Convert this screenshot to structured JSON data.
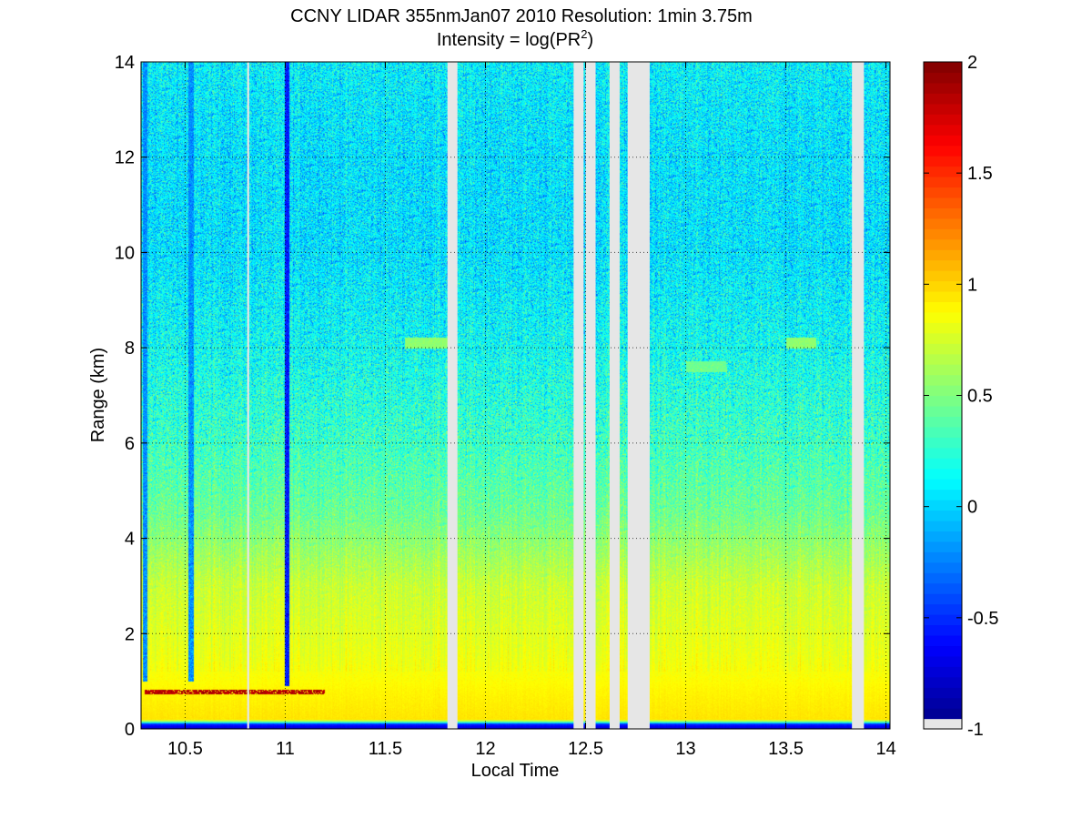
{
  "chart_data": {
    "type": "heatmap",
    "title": "CCNY LIDAR 355nmJan07 2010 Resolution: 1min 3.75m",
    "subtitle_prefix": "Intensity = log(PR",
    "subtitle_sup": "2",
    "subtitle_suffix": ")",
    "xlabel": "Local Time",
    "ylabel": "Range (km)",
    "xlim": [
      10.28,
      14.02
    ],
    "ylim": [
      0,
      14
    ],
    "xticks": [
      10.5,
      11,
      11.5,
      12,
      12.5,
      13,
      13.5,
      14
    ],
    "xtick_labels": [
      "10.5",
      "11",
      "11.5",
      "12",
      "12.5",
      "13",
      "13.5",
      "14"
    ],
    "yticks": [
      0,
      2,
      4,
      6,
      8,
      10,
      12,
      14
    ],
    "ytick_labels": [
      "0",
      "2",
      "4",
      "6",
      "8",
      "10",
      "12",
      "14"
    ],
    "grid": true,
    "colormap": "jet",
    "clim": [
      -1,
      2
    ],
    "colorbar_ticks": [
      -1,
      -0.5,
      0,
      0.5,
      1,
      1.5,
      2
    ],
    "colorbar_labels": [
      "-1",
      "-0.5",
      "0",
      "0.5",
      "1",
      "1.5",
      "2"
    ],
    "missing_color": "#e6e6e6",
    "missing_intervals": [
      [
        10.81,
        10.82
      ],
      [
        11.81,
        11.86
      ],
      [
        12.44,
        12.49
      ],
      [
        12.5,
        12.55
      ],
      [
        12.62,
        12.67
      ],
      [
        12.71,
        12.82
      ],
      [
        13.83,
        13.89
      ]
    ],
    "profile": {
      "heights_km": [
        0,
        0.1,
        0.15,
        0.2,
        0.8,
        1.5,
        3,
        4.5,
        6,
        8,
        10,
        12,
        14
      ],
      "intensity": [
        -0.8,
        -0.5,
        0.5,
        0.95,
        0.9,
        0.82,
        0.72,
        0.45,
        0.3,
        0.15,
        0.05,
        0.05,
        0.1
      ]
    },
    "features": {
      "cloud_layer": {
        "x_range": [
          10.3,
          11.2
        ],
        "height_km": 0.78,
        "intensity": 1.85
      },
      "dark_streaks": [
        {
          "x": 11.01,
          "y_range": [
            0.9,
            14
          ],
          "intensity": -0.55
        },
        {
          "x": 10.53,
          "y_range": [
            1.0,
            14
          ],
          "intensity": -0.2
        },
        {
          "x": 10.3,
          "y_range": [
            1.0,
            14
          ],
          "intensity": -0.2
        }
      ],
      "elevated_layer": [
        {
          "x_range": [
            11.6,
            11.85
          ],
          "height_km": 8.1,
          "intensity": 0.55
        },
        {
          "x_range": [
            13.5,
            13.65
          ],
          "height_km": 8.1,
          "intensity": 0.55
        },
        {
          "x_range": [
            13.0,
            13.2
          ],
          "height_km": 7.6,
          "intensity": 0.45
        }
      ]
    }
  }
}
